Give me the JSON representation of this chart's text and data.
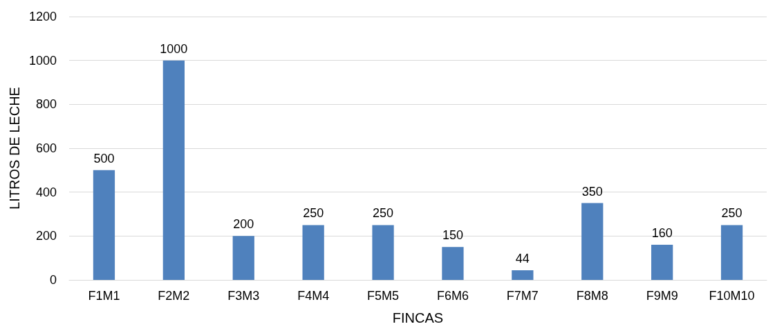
{
  "chart_data": {
    "type": "bar",
    "xlabel": "FINCAS",
    "ylabel": "LITROS DE LECHE",
    "categories": [
      "F1M1",
      "F2M2",
      "F3M3",
      "F4M4",
      "F5M5",
      "F6M6",
      "F7M7",
      "F8M8",
      "F9M9",
      "F10M10"
    ],
    "values": [
      500,
      1000,
      200,
      250,
      250,
      150,
      44,
      350,
      160,
      250
    ],
    "color": "#4f81bd",
    "ylim": [
      0,
      1200
    ],
    "yticks": [
      0,
      200,
      400,
      600,
      800,
      1000,
      1200
    ],
    "grid": "y",
    "data_labels": true
  }
}
